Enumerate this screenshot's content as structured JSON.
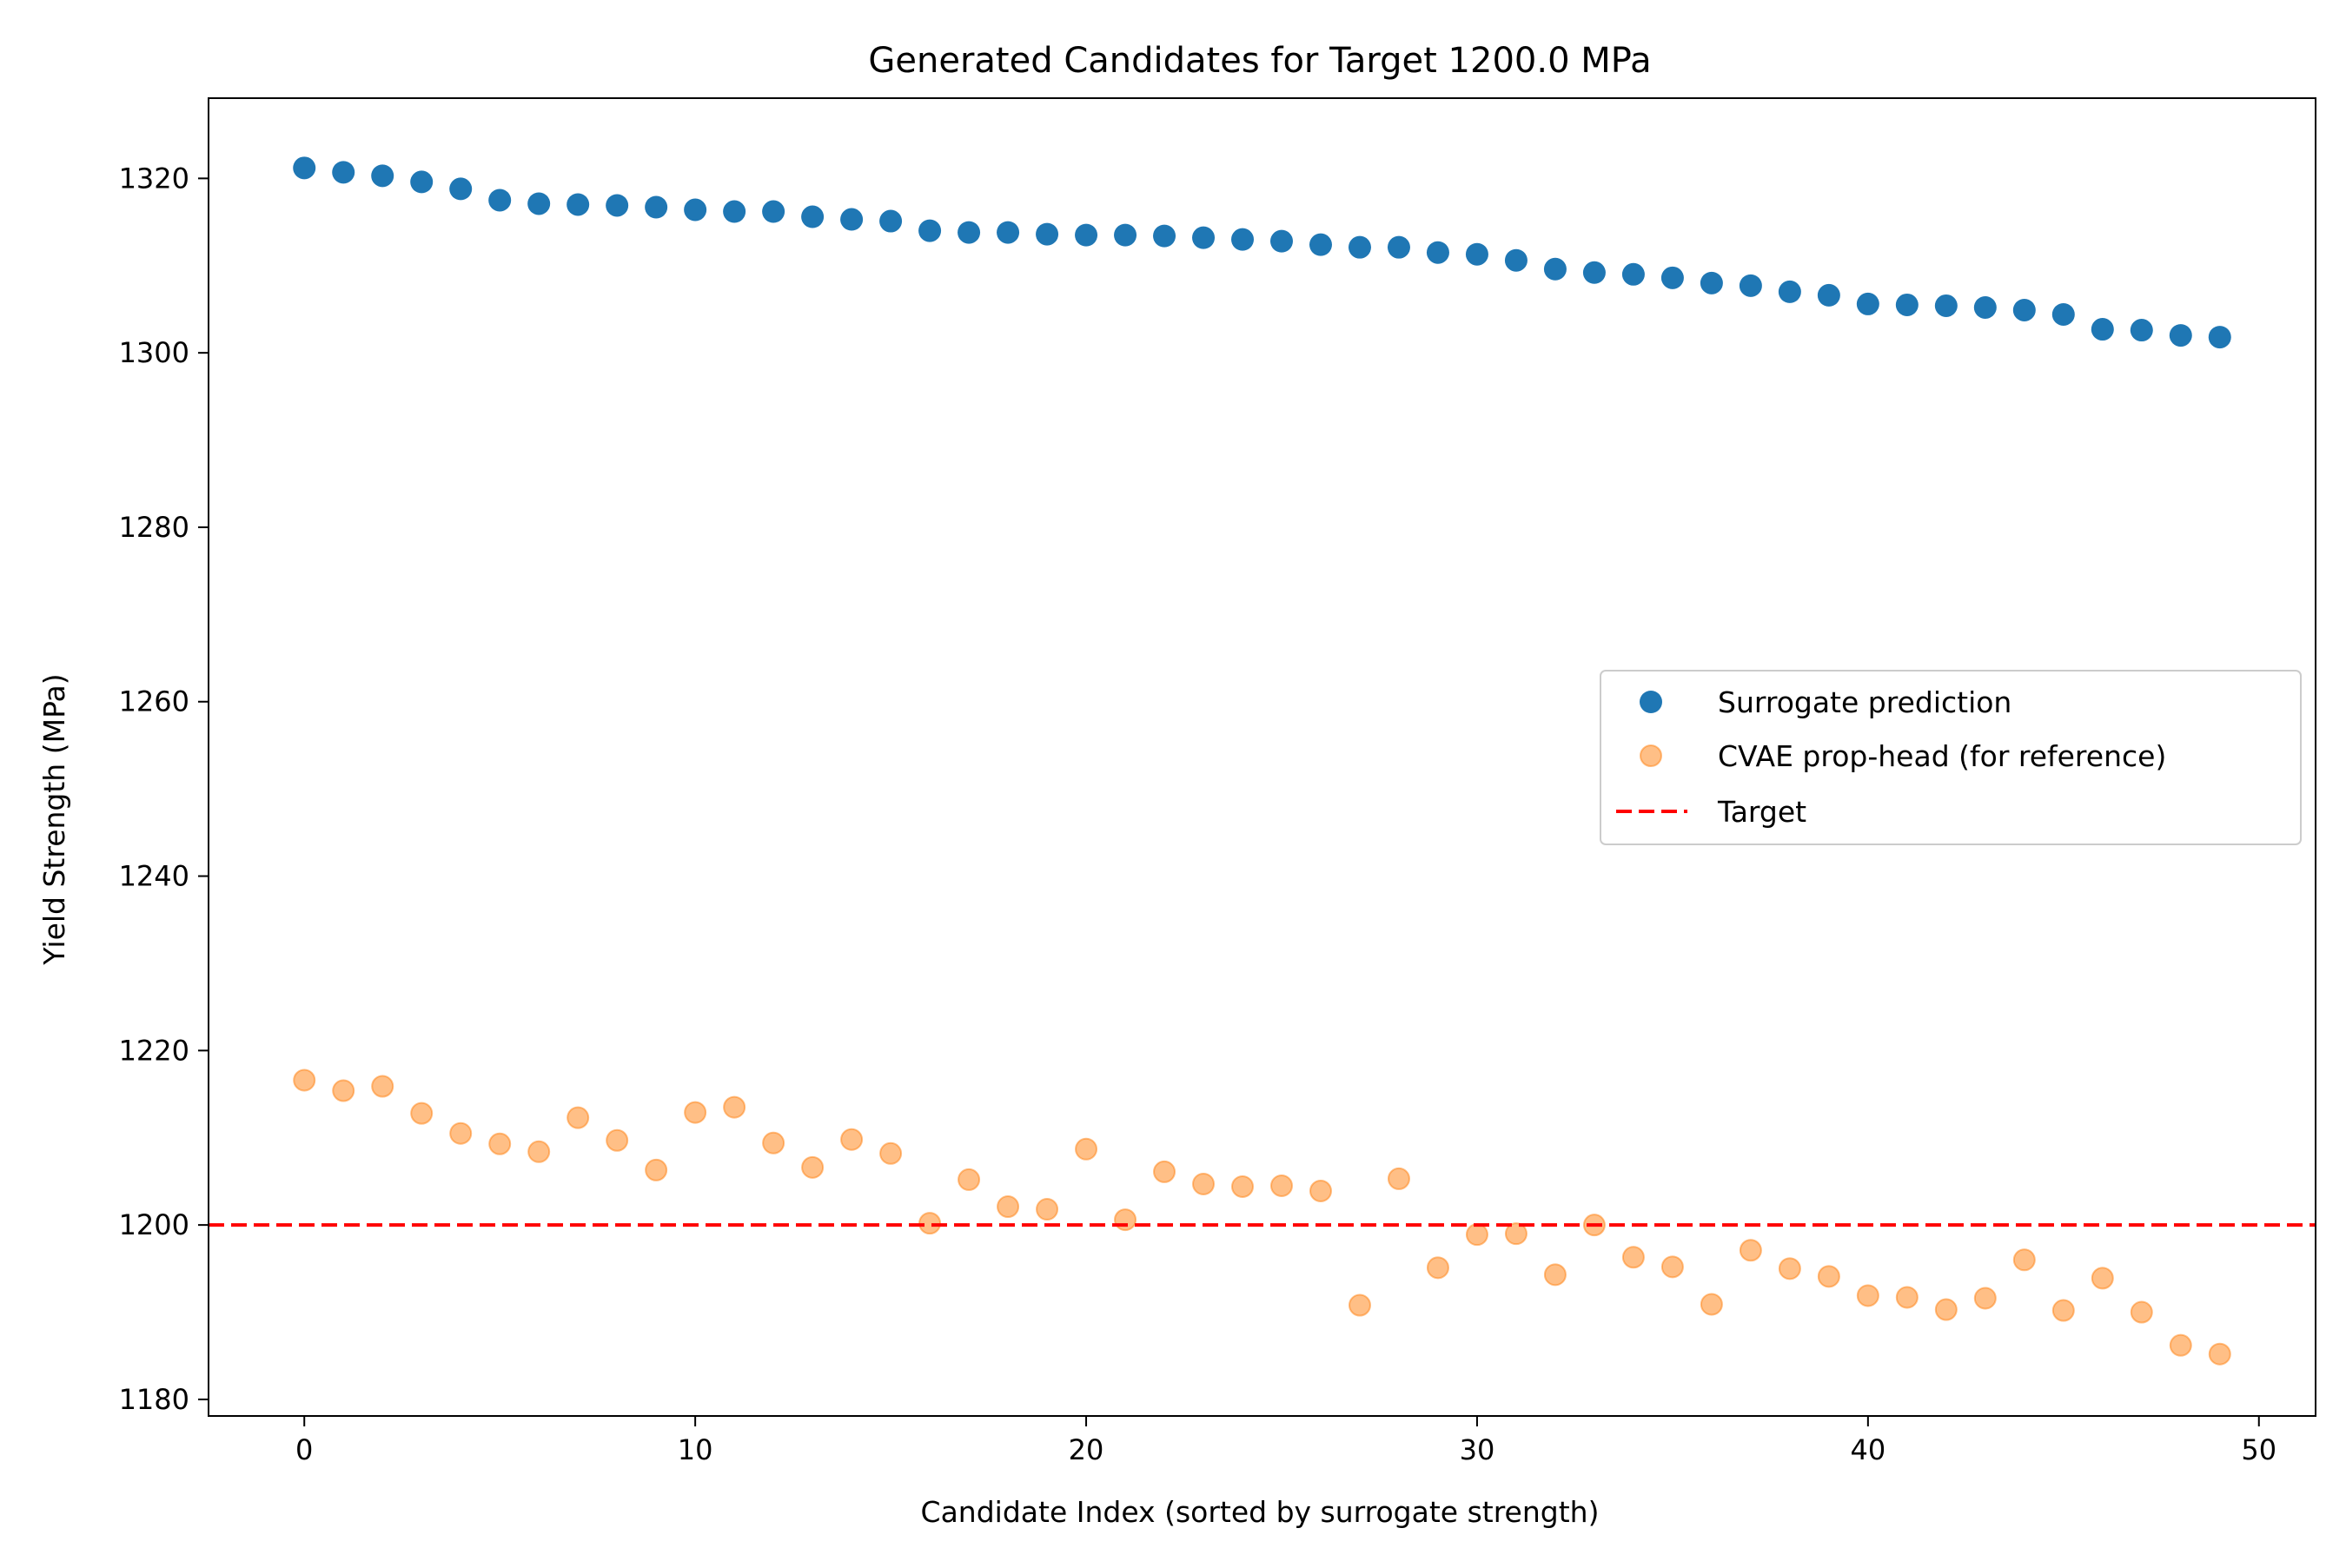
{
  "chart_data": {
    "type": "scatter",
    "title": "Generated Candidates for Target 1200.0 MPa",
    "xlabel": "Candidate Index (sorted by surrogate strength)",
    "ylabel": "Yield Strength (MPa)",
    "xlim": [
      -2.45,
      51.45
    ],
    "ylim": [
      1178.1,
      1329.2
    ],
    "xticks": [
      0,
      10,
      20,
      30,
      40,
      50
    ],
    "yticks": [
      1180,
      1200,
      1220,
      1240,
      1260,
      1280,
      1300,
      1320
    ],
    "grid": false,
    "legend_position": "center-right",
    "series": [
      {
        "name": "Surrogate prediction",
        "color": "#1f77b4",
        "marker": "circle",
        "x": [
          0,
          1,
          2,
          3,
          4,
          5,
          6,
          7,
          8,
          9,
          10,
          11,
          12,
          13,
          14,
          15,
          16,
          17,
          18,
          19,
          20,
          21,
          22,
          23,
          24,
          25,
          26,
          27,
          28,
          29,
          30,
          31,
          32,
          33,
          34,
          35,
          36,
          37,
          38,
          39,
          40,
          41,
          42,
          43,
          44,
          45,
          46,
          47,
          48,
          49
        ],
        "y": [
          1321.2,
          1320.7,
          1320.3,
          1319.6,
          1318.8,
          1317.5,
          1317.1,
          1317.0,
          1316.9,
          1316.7,
          1316.4,
          1316.2,
          1316.2,
          1315.6,
          1315.3,
          1315.1,
          1314.0,
          1313.8,
          1313.8,
          1313.6,
          1313.5,
          1313.5,
          1313.4,
          1313.2,
          1313.0,
          1312.8,
          1312.4,
          1312.1,
          1312.1,
          1311.5,
          1311.3,
          1310.6,
          1309.6,
          1309.2,
          1309.0,
          1308.6,
          1308.0,
          1307.7,
          1307.0,
          1306.6,
          1305.6,
          1305.5,
          1305.4,
          1305.2,
          1304.9,
          1304.4,
          1302.7,
          1302.6,
          1302.0,
          1301.8
        ]
      },
      {
        "name": "CVAE prop-head (for reference)",
        "color": "#ff7f0e",
        "marker": "circle",
        "alpha": 0.5,
        "x": [
          0,
          1,
          2,
          3,
          4,
          5,
          6,
          7,
          8,
          9,
          10,
          11,
          12,
          13,
          14,
          15,
          16,
          17,
          18,
          19,
          20,
          21,
          22,
          23,
          24,
          25,
          26,
          27,
          28,
          29,
          30,
          31,
          32,
          33,
          34,
          35,
          36,
          37,
          38,
          39,
          40,
          41,
          42,
          43,
          44,
          45,
          46,
          47,
          48,
          49
        ],
        "y": [
          1216.6,
          1215.4,
          1215.9,
          1212.8,
          1210.5,
          1209.3,
          1208.4,
          1212.3,
          1209.7,
          1206.3,
          1212.9,
          1213.5,
          1209.4,
          1206.6,
          1209.8,
          1208.2,
          1200.2,
          1205.2,
          1202.1,
          1201.8,
          1208.7,
          1200.6,
          1206.1,
          1204.7,
          1204.4,
          1204.5,
          1203.9,
          1190.8,
          1205.3,
          1195.1,
          1198.9,
          1199.0,
          1194.3,
          1200.0,
          1196.3,
          1195.2,
          1190.9,
          1197.1,
          1195.0,
          1194.1,
          1191.9,
          1191.7,
          1190.3,
          1191.6,
          1196.0,
          1190.2,
          1193.9,
          1190.0,
          1186.2,
          1185.2
        ]
      }
    ],
    "reference_lines": [
      {
        "name": "Target",
        "orientation": "horizontal",
        "y": 1200.0,
        "color": "#ff0000",
        "style": "dashed"
      }
    ]
  }
}
